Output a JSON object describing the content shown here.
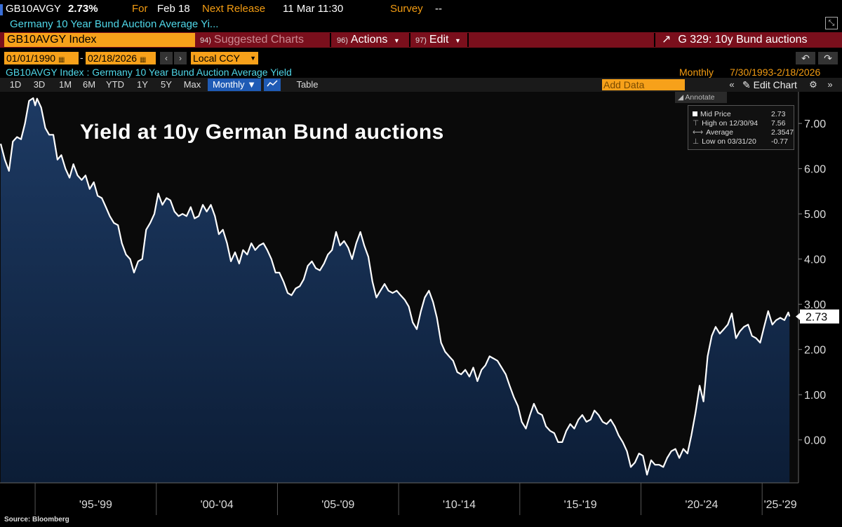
{
  "header": {
    "ticker": "GB10AVGY",
    "last_value": "2.73%",
    "for_label": "For",
    "for_value": "Feb 18",
    "next_release_label": "Next Release",
    "next_release_value": "11 Mar 11:30",
    "survey_label": "Survey",
    "survey_value": "--",
    "subtitle": "Germany 10 Year Bund Auction Average Yi..."
  },
  "toolbar": {
    "security": "GB10AVGY Index",
    "suggested_num": "94)",
    "suggested_label": "Suggested Charts",
    "actions_num": "96)",
    "actions_label": "Actions",
    "edit_num": "97)",
    "edit_label": "Edit",
    "right_title": "G 329: 10y Bund auctions"
  },
  "dates": {
    "start": "01/01/1990",
    "end": "02/18/2026",
    "currency": "Local CCY"
  },
  "description": {
    "text": "GB10AVGY Index : Germany 10 Year Bund Auction Average Yield",
    "frequency": "Monthly",
    "range": "7/30/1993-2/18/2026"
  },
  "period_buttons": [
    "1D",
    "3D",
    "1M",
    "6M",
    "YTD",
    "1Y",
    "5Y",
    "Max"
  ],
  "monthly_label": "Monthly ▼",
  "table_label": "Table",
  "add_data_placeholder": "Add Data",
  "edit_chart_label": "Edit Chart",
  "annotate_label": "Annotate",
  "legend": {
    "mid_label": "Mid Price",
    "mid_value": "2.73",
    "high_label": "High on 12/30/94",
    "high_value": "7.56",
    "avg_label": "Average",
    "avg_value": "2.3547",
    "low_label": "Low on 03/31/20",
    "low_value": "-0.77"
  },
  "overlay_title": "Yield at 10y German Bund auctions",
  "source": "Source: Bloomberg",
  "colors": {
    "background": "#000000",
    "line": "#ffffff",
    "fill_top": "#1d3a63",
    "fill_bottom": "#0c1d36",
    "accent_orange": "#f7a11a",
    "toolbar_red": "#7a0f1c",
    "cyan_text": "#4fd7e8"
  },
  "chart_data": {
    "type": "area",
    "ylim": [
      -0.95,
      7.7
    ],
    "xlim": [
      1993.55,
      2026.5
    ],
    "y_ticks": [
      0,
      1,
      2,
      3,
      4,
      5,
      6,
      7
    ],
    "y_tick_labels": [
      "0.00",
      "1.00",
      "2.00",
      "3.00",
      "4.00",
      "5.00",
      "6.00",
      "7.00"
    ],
    "x_groups": [
      {
        "label": "'95-'99",
        "from": 1995,
        "to": 2000
      },
      {
        "label": "'00-'04",
        "from": 2000,
        "to": 2005
      },
      {
        "label": "'05-'09",
        "from": 2005,
        "to": 2010
      },
      {
        "label": "'10-'14",
        "from": 2010,
        "to": 2015
      },
      {
        "label": "'15-'19",
        "from": 2015,
        "to": 2020
      },
      {
        "label": "'20-'24",
        "from": 2020,
        "to": 2025
      },
      {
        "label": "'25-'29",
        "from": 2025,
        "to": 2030
      }
    ],
    "last_value_label": "2.73",
    "series": [
      {
        "values": [
          [
            1993.58,
            6.55
          ],
          [
            1993.75,
            6.2
          ],
          [
            1993.92,
            5.95
          ],
          [
            1994.08,
            6.6
          ],
          [
            1994.25,
            6.7
          ],
          [
            1994.42,
            6.65
          ],
          [
            1994.58,
            7.0
          ],
          [
            1994.75,
            7.5
          ],
          [
            1994.92,
            7.56
          ],
          [
            1995.0,
            7.4
          ],
          [
            1995.08,
            7.55
          ],
          [
            1995.25,
            7.35
          ],
          [
            1995.42,
            6.9
          ],
          [
            1995.58,
            6.75
          ],
          [
            1995.75,
            6.75
          ],
          [
            1995.92,
            6.2
          ],
          [
            1996.08,
            6.3
          ],
          [
            1996.25,
            6.0
          ],
          [
            1996.42,
            5.8
          ],
          [
            1996.58,
            6.1
          ],
          [
            1996.75,
            5.85
          ],
          [
            1996.92,
            5.75
          ],
          [
            1997.08,
            5.85
          ],
          [
            1997.25,
            5.55
          ],
          [
            1997.42,
            5.7
          ],
          [
            1997.58,
            5.4
          ],
          [
            1997.75,
            5.35
          ],
          [
            1997.92,
            5.15
          ],
          [
            1998.08,
            4.95
          ],
          [
            1998.25,
            4.8
          ],
          [
            1998.42,
            4.75
          ],
          [
            1998.58,
            4.35
          ],
          [
            1998.75,
            4.1
          ],
          [
            1998.92,
            4.0
          ],
          [
            1999.08,
            3.7
          ],
          [
            1999.25,
            3.95
          ],
          [
            1999.42,
            4.0
          ],
          [
            1999.58,
            4.65
          ],
          [
            1999.75,
            4.8
          ],
          [
            1999.92,
            5.0
          ],
          [
            2000.08,
            5.45
          ],
          [
            2000.25,
            5.2
          ],
          [
            2000.42,
            5.35
          ],
          [
            2000.58,
            5.3
          ],
          [
            2000.75,
            5.05
          ],
          [
            2000.92,
            4.95
          ],
          [
            2001.08,
            5.0
          ],
          [
            2001.25,
            4.95
          ],
          [
            2001.42,
            5.15
          ],
          [
            2001.58,
            4.9
          ],
          [
            2001.75,
            4.95
          ],
          [
            2001.92,
            5.2
          ],
          [
            2002.08,
            5.05
          ],
          [
            2002.25,
            5.2
          ],
          [
            2002.42,
            4.95
          ],
          [
            2002.58,
            4.55
          ],
          [
            2002.75,
            4.65
          ],
          [
            2002.92,
            4.35
          ],
          [
            2003.08,
            3.95
          ],
          [
            2003.25,
            4.15
          ],
          [
            2003.42,
            3.9
          ],
          [
            2003.58,
            4.2
          ],
          [
            2003.75,
            4.1
          ],
          [
            2003.92,
            4.35
          ],
          [
            2004.08,
            4.2
          ],
          [
            2004.25,
            4.3
          ],
          [
            2004.42,
            4.35
          ],
          [
            2004.58,
            4.2
          ],
          [
            2004.75,
            4.0
          ],
          [
            2004.92,
            3.7
          ],
          [
            2005.08,
            3.7
          ],
          [
            2005.25,
            3.5
          ],
          [
            2005.42,
            3.25
          ],
          [
            2005.58,
            3.2
          ],
          [
            2005.75,
            3.35
          ],
          [
            2005.92,
            3.4
          ],
          [
            2006.08,
            3.55
          ],
          [
            2006.25,
            3.85
          ],
          [
            2006.42,
            3.95
          ],
          [
            2006.58,
            3.8
          ],
          [
            2006.75,
            3.75
          ],
          [
            2006.92,
            3.9
          ],
          [
            2007.08,
            4.1
          ],
          [
            2007.25,
            4.2
          ],
          [
            2007.42,
            4.6
          ],
          [
            2007.58,
            4.3
          ],
          [
            2007.75,
            4.4
          ],
          [
            2007.92,
            4.25
          ],
          [
            2008.08,
            4.0
          ],
          [
            2008.25,
            4.35
          ],
          [
            2008.42,
            4.6
          ],
          [
            2008.58,
            4.3
          ],
          [
            2008.75,
            4.05
          ],
          [
            2008.92,
            3.5
          ],
          [
            2009.08,
            3.15
          ],
          [
            2009.25,
            3.3
          ],
          [
            2009.42,
            3.45
          ],
          [
            2009.58,
            3.3
          ],
          [
            2009.75,
            3.25
          ],
          [
            2009.92,
            3.3
          ],
          [
            2010.08,
            3.2
          ],
          [
            2010.25,
            3.1
          ],
          [
            2010.42,
            2.95
          ],
          [
            2010.58,
            2.6
          ],
          [
            2010.75,
            2.45
          ],
          [
            2010.92,
            2.85
          ],
          [
            2011.08,
            3.15
          ],
          [
            2011.25,
            3.3
          ],
          [
            2011.42,
            3.05
          ],
          [
            2011.58,
            2.7
          ],
          [
            2011.75,
            2.15
          ],
          [
            2011.92,
            1.95
          ],
          [
            2012.08,
            1.85
          ],
          [
            2012.25,
            1.75
          ],
          [
            2012.42,
            1.5
          ],
          [
            2012.58,
            1.45
          ],
          [
            2012.75,
            1.55
          ],
          [
            2012.92,
            1.4
          ],
          [
            2013.08,
            1.6
          ],
          [
            2013.25,
            1.3
          ],
          [
            2013.42,
            1.55
          ],
          [
            2013.58,
            1.65
          ],
          [
            2013.75,
            1.85
          ],
          [
            2013.92,
            1.8
          ],
          [
            2014.08,
            1.75
          ],
          [
            2014.25,
            1.6
          ],
          [
            2014.42,
            1.45
          ],
          [
            2014.58,
            1.2
          ],
          [
            2014.75,
            0.95
          ],
          [
            2014.92,
            0.75
          ],
          [
            2015.08,
            0.4
          ],
          [
            2015.25,
            0.25
          ],
          [
            2015.42,
            0.55
          ],
          [
            2015.58,
            0.8
          ],
          [
            2015.75,
            0.6
          ],
          [
            2015.92,
            0.55
          ],
          [
            2016.08,
            0.3
          ],
          [
            2016.25,
            0.2
          ],
          [
            2016.42,
            0.15
          ],
          [
            2016.58,
            -0.05
          ],
          [
            2016.75,
            -0.05
          ],
          [
            2016.92,
            0.2
          ],
          [
            2017.08,
            0.35
          ],
          [
            2017.25,
            0.25
          ],
          [
            2017.42,
            0.45
          ],
          [
            2017.58,
            0.55
          ],
          [
            2017.75,
            0.4
          ],
          [
            2017.92,
            0.45
          ],
          [
            2018.08,
            0.65
          ],
          [
            2018.25,
            0.55
          ],
          [
            2018.42,
            0.4
          ],
          [
            2018.58,
            0.35
          ],
          [
            2018.75,
            0.45
          ],
          [
            2018.92,
            0.3
          ],
          [
            2019.08,
            0.1
          ],
          [
            2019.25,
            -0.05
          ],
          [
            2019.42,
            -0.25
          ],
          [
            2019.58,
            -0.6
          ],
          [
            2019.75,
            -0.5
          ],
          [
            2019.92,
            -0.3
          ],
          [
            2020.08,
            -0.35
          ],
          [
            2020.25,
            -0.77
          ],
          [
            2020.42,
            -0.45
          ],
          [
            2020.58,
            -0.55
          ],
          [
            2020.75,
            -0.55
          ],
          [
            2020.92,
            -0.6
          ],
          [
            2021.08,
            -0.4
          ],
          [
            2021.25,
            -0.25
          ],
          [
            2021.42,
            -0.2
          ],
          [
            2021.58,
            -0.4
          ],
          [
            2021.75,
            -0.2
          ],
          [
            2021.92,
            -0.3
          ],
          [
            2022.08,
            0.1
          ],
          [
            2022.25,
            0.6
          ],
          [
            2022.42,
            1.2
          ],
          [
            2022.58,
            0.85
          ],
          [
            2022.75,
            1.85
          ],
          [
            2022.92,
            2.3
          ],
          [
            2023.08,
            2.5
          ],
          [
            2023.25,
            2.35
          ],
          [
            2023.42,
            2.45
          ],
          [
            2023.58,
            2.55
          ],
          [
            2023.75,
            2.8
          ],
          [
            2023.92,
            2.25
          ],
          [
            2024.08,
            2.4
          ],
          [
            2024.25,
            2.5
          ],
          [
            2024.42,
            2.55
          ],
          [
            2024.58,
            2.3
          ],
          [
            2024.75,
            2.25
          ],
          [
            2024.92,
            2.15
          ],
          [
            2025.08,
            2.5
          ],
          [
            2025.25,
            2.85
          ],
          [
            2025.42,
            2.55
          ],
          [
            2025.58,
            2.65
          ],
          [
            2025.75,
            2.7
          ],
          [
            2025.92,
            2.65
          ],
          [
            2026.08,
            2.82
          ],
          [
            2026.13,
            2.73
          ]
        ]
      }
    ]
  }
}
